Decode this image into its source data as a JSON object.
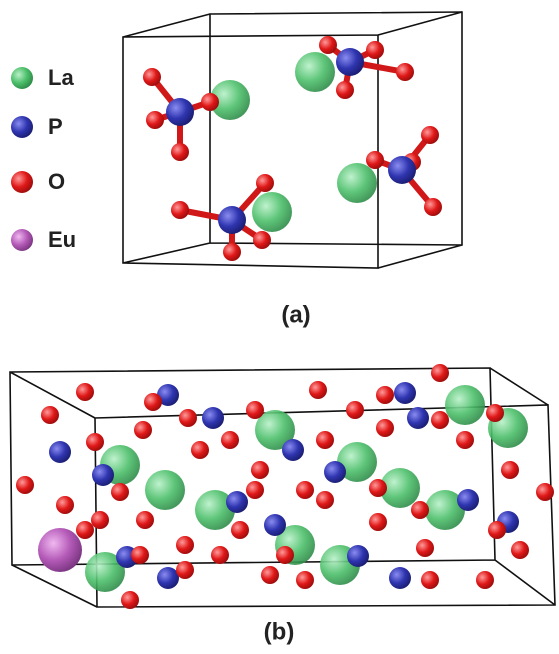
{
  "legend": {
    "items": [
      {
        "label": "La"
      },
      {
        "label": "P"
      },
      {
        "label": "O"
      },
      {
        "label": "Eu"
      }
    ]
  },
  "panels": [
    {
      "caption": "(a)"
    },
    {
      "caption": "(b)"
    }
  ]
}
